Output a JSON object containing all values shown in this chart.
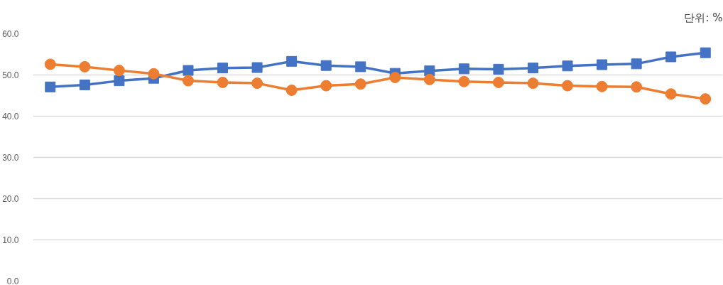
{
  "chart_data": {
    "type": "line",
    "annotations": [
      "단위: %"
    ],
    "categories": [
      null,
      null,
      null,
      null,
      null,
      null,
      null,
      null,
      null,
      null,
      null,
      null,
      null,
      null,
      null,
      null,
      null,
      null,
      null,
      null
    ],
    "series": [
      {
        "color": "#4472c4",
        "marker": "square",
        "values": [
          47.1,
          47.6,
          48.6,
          49.2,
          51.1,
          51.7,
          51.8,
          53.3,
          52.3,
          52.0,
          50.4,
          51.0,
          51.5,
          51.4,
          51.7,
          52.2,
          52.5,
          52.7,
          54.4,
          55.4
        ]
      },
      {
        "color": "#ed7d31",
        "marker": "circle",
        "values": [
          52.6,
          52.0,
          51.1,
          50.3,
          48.6,
          48.2,
          48.0,
          46.3,
          47.4,
          47.8,
          49.4,
          48.9,
          48.4,
          48.2,
          48.0,
          47.4,
          47.2,
          47.1,
          45.4,
          44.2
        ]
      }
    ],
    "ylim": [
      0,
      60
    ],
    "yticks": [
      {
        "value": 0,
        "label": "0.0"
      },
      {
        "value": 10,
        "label": "10.0"
      },
      {
        "value": 20,
        "label": "20.0"
      },
      {
        "value": 30,
        "label": "30.0"
      },
      {
        "value": 40,
        "label": "40.0"
      },
      {
        "value": 50,
        "label": "50.0"
      },
      {
        "value": 60,
        "label": "60.0"
      }
    ],
    "grid": "y",
    "tick_labels": "y",
    "line_style": "solid"
  }
}
